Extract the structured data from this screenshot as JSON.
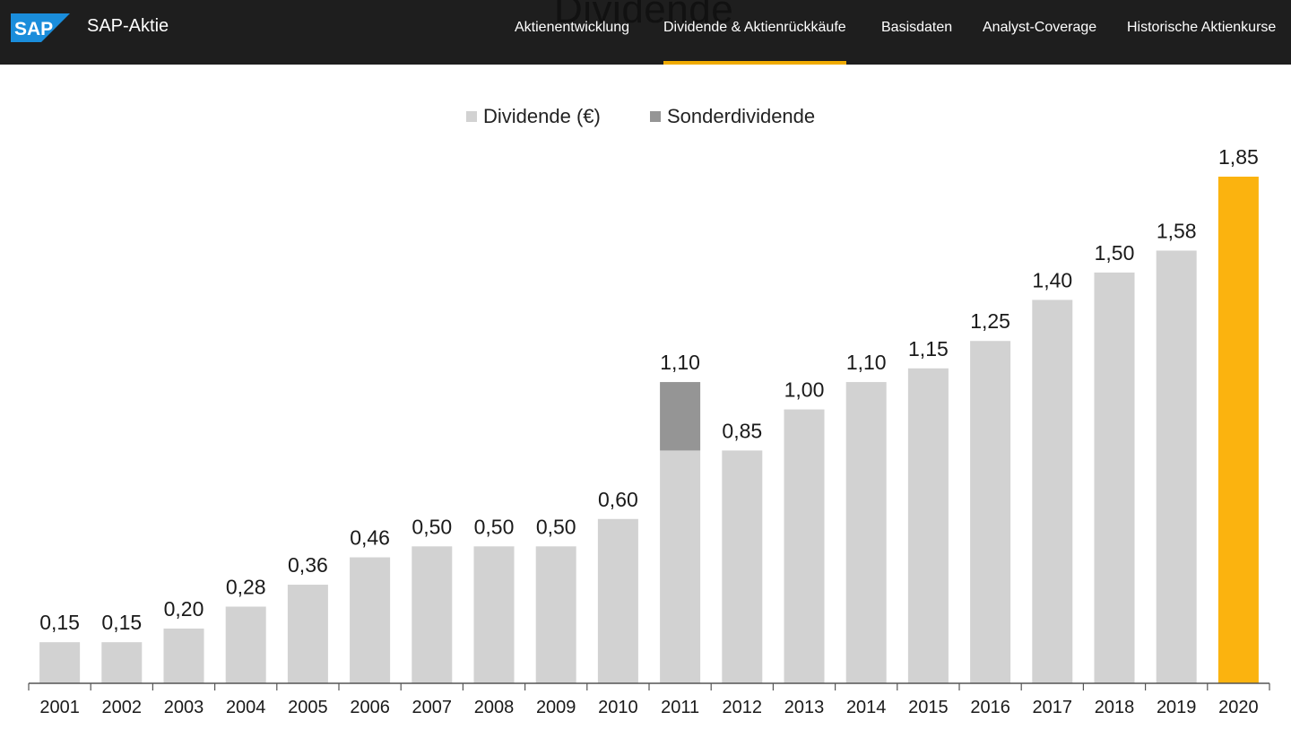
{
  "header": {
    "brand": "SAP-Aktie",
    "logo_text": "SAP",
    "behind_title": "Dividende",
    "nav": [
      {
        "label": "Aktienentwicklung",
        "active": false
      },
      {
        "label": "Dividende & Aktienrückkäufe",
        "active": true
      },
      {
        "label": "Basisdaten",
        "active": false
      },
      {
        "label": "Analyst-Coverage",
        "active": false
      },
      {
        "label": "Historische Aktienkurse",
        "active": false
      }
    ]
  },
  "colors": {
    "header_bg": "#1e1e1e",
    "accent": "#f0ab00",
    "bar": "#d2d2d2",
    "special": "#959595",
    "highlight": "#fbb30f",
    "logo_blue": "#1a8ddb"
  },
  "chart_data": {
    "type": "bar",
    "stacked": true,
    "legend": {
      "position": "top-center"
    },
    "categories": [
      "2001",
      "2002",
      "2003",
      "2004",
      "2005",
      "2006",
      "2007",
      "2008",
      "2009",
      "2010",
      "2011",
      "2012",
      "2013",
      "2014",
      "2015",
      "2016",
      "2017",
      "2018",
      "2019",
      "2020"
    ],
    "series": [
      {
        "name": "Dividende (€)",
        "values": [
          0.15,
          0.15,
          0.2,
          0.28,
          0.36,
          0.46,
          0.5,
          0.5,
          0.5,
          0.6,
          0.85,
          0.85,
          1.0,
          1.1,
          1.15,
          1.25,
          1.4,
          1.5,
          1.58,
          1.85
        ]
      },
      {
        "name": "Sonderdividende",
        "values": [
          0,
          0,
          0,
          0,
          0,
          0,
          0,
          0,
          0,
          0,
          0.25,
          0,
          0,
          0,
          0,
          0,
          0,
          0,
          0,
          0
        ]
      }
    ],
    "data_labels": [
      "0,15",
      "0,15",
      "0,20",
      "0,28",
      "0,36",
      "0,46",
      "0,50",
      "0,50",
      "0,50",
      "0,60",
      "1,10",
      "0,85",
      "1,00",
      "1,10",
      "1,15",
      "1,25",
      "1,40",
      "1,50",
      "1,58",
      "1,85"
    ],
    "highlight_category": "2020",
    "ylim": [
      0,
      1.85
    ],
    "grid": false
  }
}
